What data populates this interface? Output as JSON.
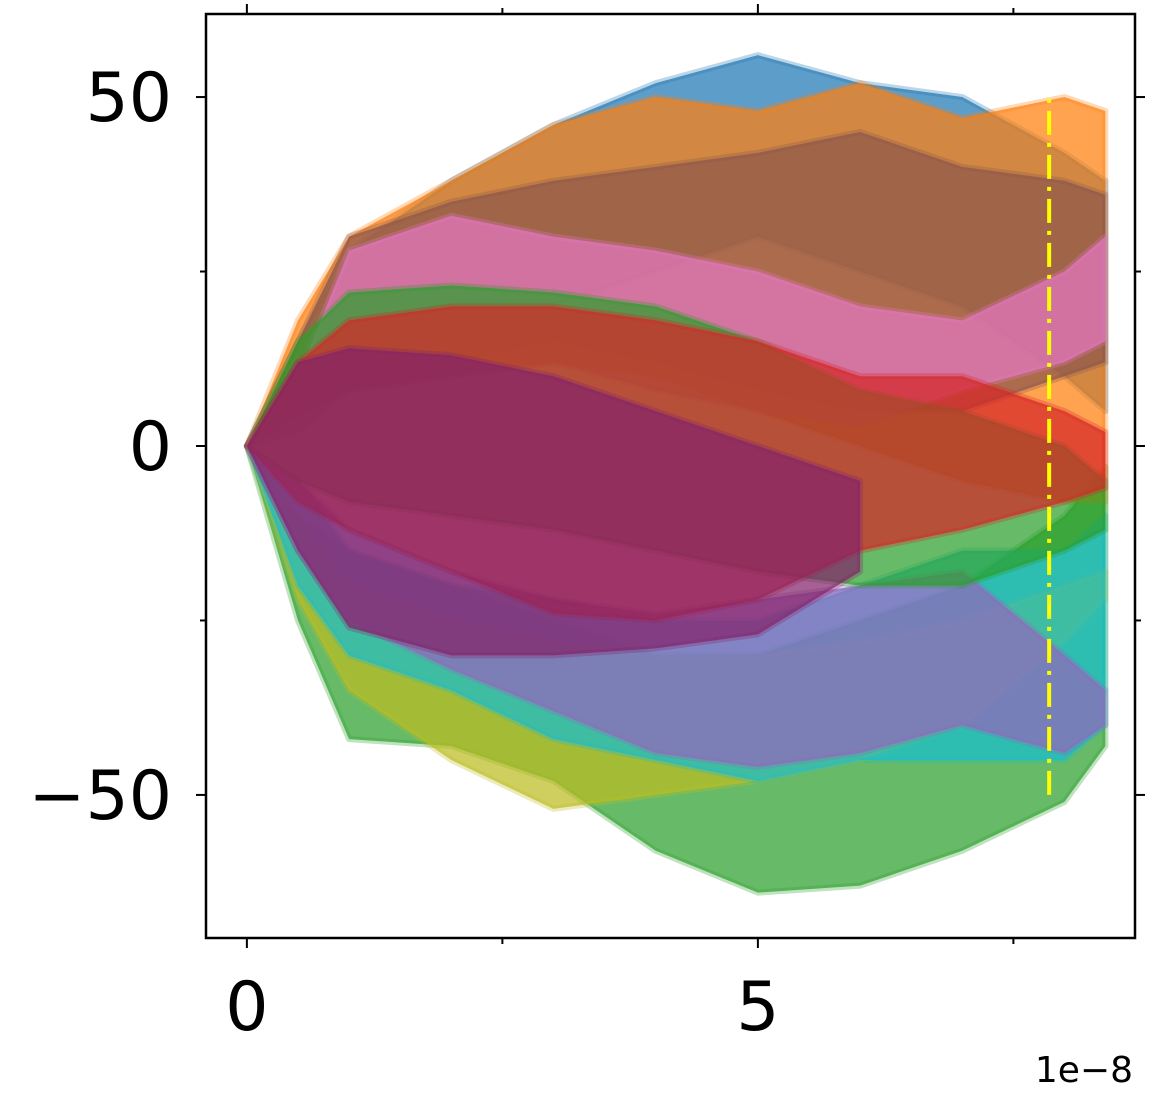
{
  "chart_data": {
    "type": "band",
    "x": [
      0,
      0.5,
      1,
      2,
      3,
      4,
      5,
      6,
      7,
      8,
      8.4
    ],
    "xlim": [
      -0.4,
      8.69
    ],
    "ylim": [
      -70.5,
      61.9
    ],
    "xticks": [
      0,
      5
    ],
    "yticks": [
      -50,
      0,
      50
    ],
    "xminor": [
      2.5,
      7.5
    ],
    "yminor": [
      -25,
      25
    ],
    "x_offset_label": "1e−8",
    "opacity": 0.72,
    "series": [
      {
        "color": "#2ca02c",
        "upper": [
          0,
          -10,
          -15,
          -20,
          -25,
          -30,
          -30,
          -25,
          -20,
          -10,
          -3
        ],
        "lower": [
          0,
          -25,
          -42,
          -43,
          -48,
          -58,
          -64,
          -63,
          -58,
          -51,
          -43
        ]
      },
      {
        "color": "#bcbd22",
        "upper": [
          0,
          -10,
          -20,
          -25,
          -28,
          -30,
          -30,
          -28,
          -25,
          -20,
          -18
        ],
        "lower": [
          0,
          -22,
          -35,
          -45,
          -52,
          -50,
          -48,
          -45,
          -40,
          -28,
          -22
        ]
      },
      {
        "color": "#17becf",
        "upper": [
          0,
          -5,
          -15,
          -20,
          -22,
          -25,
          -25,
          -20,
          -15,
          -15,
          -10
        ],
        "lower": [
          0,
          -20,
          -30,
          -35,
          -42,
          -45,
          -48,
          -45,
          -45,
          -45,
          -40
        ]
      },
      {
        "color": "#9467bd",
        "upper": [
          0,
          -5,
          -12,
          -18,
          -22,
          -24,
          -22,
          -20,
          -18,
          -30,
          -35
        ],
        "lower": [
          0,
          -15,
          -25,
          -32,
          -38,
          -44,
          -46,
          -44,
          -40,
          -44,
          -40
        ]
      },
      {
        "color": "#1f77b4",
        "upper": [
          0,
          15,
          28,
          38,
          46,
          52,
          56,
          52,
          50,
          42,
          38
        ],
        "lower": [
          0,
          5,
          10,
          15,
          20,
          25,
          30,
          25,
          20,
          10,
          5
        ]
      },
      {
        "color": "#ff7f0e",
        "upper": [
          0,
          18,
          30,
          38,
          46,
          50,
          48,
          52,
          47,
          50,
          48
        ],
        "lower": [
          0,
          5,
          8,
          10,
          12,
          10,
          5,
          0,
          -5,
          -8,
          -8
        ]
      },
      {
        "color": "#8c564b",
        "upper": [
          0,
          15,
          30,
          35,
          38,
          40,
          42,
          45,
          40,
          38,
          36
        ],
        "lower": [
          0,
          5,
          10,
          12,
          15,
          12,
          8,
          5,
          5,
          10,
          12
        ]
      },
      {
        "color": "#e377c2",
        "upper": [
          0,
          10,
          28,
          33,
          30,
          28,
          25,
          20,
          18,
          25,
          30
        ],
        "lower": [
          0,
          2,
          8,
          10,
          12,
          8,
          5,
          3,
          8,
          12,
          15
        ]
      },
      {
        "color": "#2ca02c",
        "upper": [
          0,
          15,
          22,
          23,
          22,
          20,
          15,
          8,
          5,
          0,
          -5
        ],
        "lower": [
          0,
          -5,
          -8,
          -10,
          -12,
          -15,
          -18,
          -20,
          -20,
          -15,
          -12
        ]
      },
      {
        "color": "#d62728",
        "upper": [
          0,
          12,
          18,
          20,
          20,
          18,
          15,
          10,
          10,
          5,
          2
        ],
        "lower": [
          0,
          -8,
          -12,
          -18,
          -24,
          -25,
          -22,
          -15,
          -12,
          -8,
          -6
        ]
      },
      {
        "color": "#84236a",
        "upper": [
          0,
          12,
          14,
          13,
          10,
          5,
          0,
          -5,
          null,
          null,
          null
        ],
        "lower": [
          0,
          -15,
          -26,
          -30,
          -30,
          -29,
          -27,
          -18,
          null,
          null,
          null
        ]
      }
    ],
    "vline": {
      "x": 7.85,
      "ymin": -50,
      "ymax": 50,
      "color": "#ffff00"
    }
  }
}
